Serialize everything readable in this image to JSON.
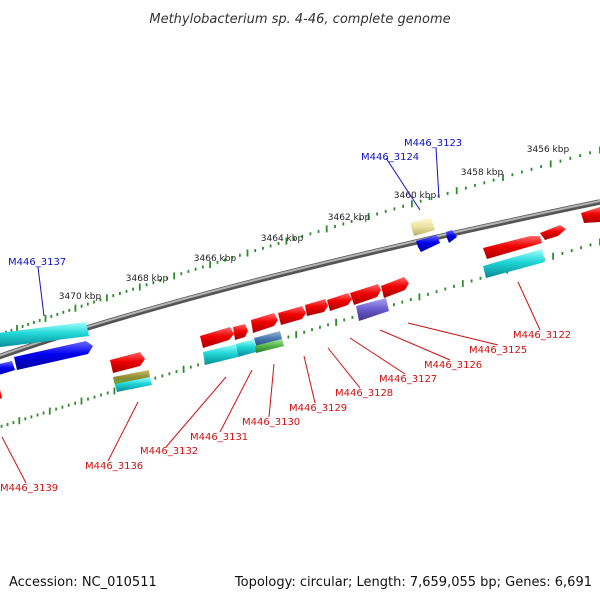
{
  "title": "Methylobacterium sp. 4-46, complete genome",
  "footer": {
    "accession": "Accession: NC_010511",
    "summary": "Topology: circular; Length: 7,659,055 bp; Genes: 6,691"
  },
  "colors": {
    "backbone": "#8c8c8c",
    "tick": "#2e8b2e",
    "forward_label": "#1010c8",
    "reverse_label": "#d01010",
    "red_gene": "#e60000",
    "cyan_gene": "#12c4c4",
    "blue_gene": "#0000e0",
    "yellow_gene": "#ece4a0",
    "purple_gene": "#6a5acd",
    "green_gene": "#55b34a"
  },
  "kbp_labels": [
    "3456 kbp",
    "3458 kbp",
    "3460 kbp",
    "3462 kbp",
    "3464 kbp",
    "3466 kbp",
    "3468 kbp",
    "3470 kbp"
  ],
  "forward_labels": [
    "M446_3123",
    "M446_3124",
    "M446_3137"
  ],
  "reverse_labels": [
    "M446_3122",
    "M446_3125",
    "M446_3126",
    "M446_3127",
    "M446_3128",
    "M446_3129",
    "M446_3130",
    "M446_3131",
    "M446_3132",
    "M446_3136",
    "M446_3139"
  ]
}
